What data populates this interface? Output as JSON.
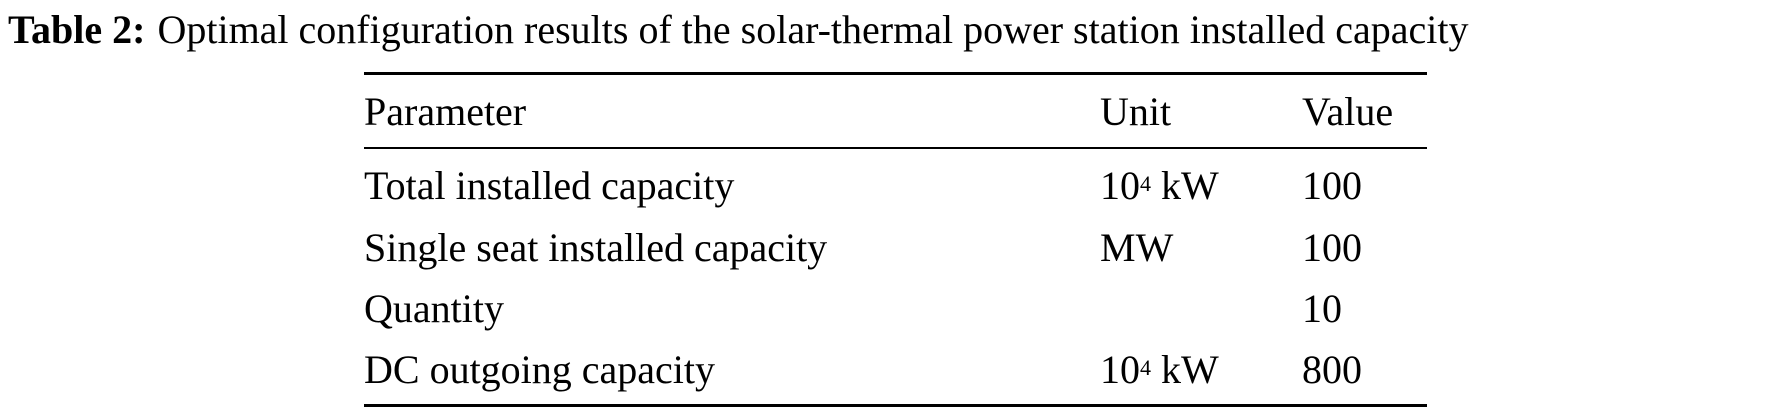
{
  "caption": {
    "label": "Table 2:",
    "text": "Optimal configuration results of the solar-thermal power station installed capacity"
  },
  "table": {
    "headers": [
      "Parameter",
      "Unit",
      "Value"
    ],
    "rows": [
      {
        "parameter": "Total installed capacity",
        "unit_base": "10",
        "unit_exp": "4",
        "unit_rest": " kW",
        "value": "100"
      },
      {
        "parameter": "Single seat installed capacity",
        "unit_base": "MW",
        "unit_exp": "",
        "unit_rest": "",
        "value": "100"
      },
      {
        "parameter": "Quantity",
        "unit_base": "",
        "unit_exp": "",
        "unit_rest": "",
        "value": "10"
      },
      {
        "parameter": "DC outgoing capacity",
        "unit_base": "10",
        "unit_exp": "4",
        "unit_rest": " kW",
        "value": "800"
      }
    ]
  }
}
